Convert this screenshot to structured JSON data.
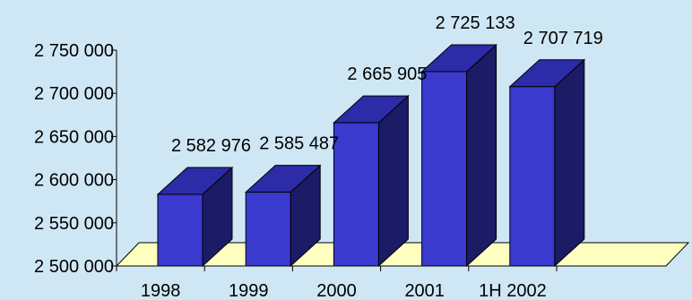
{
  "chart_data": {
    "type": "bar",
    "style": "3d",
    "categories": [
      "1998",
      "1999",
      "2000",
      "2001",
      "1H 2002"
    ],
    "values": [
      2582976,
      2585487,
      2665905,
      2725133,
      2707719
    ],
    "data_labels": [
      "2 582 976",
      "2 585 487",
      "2 665 905",
      "2 725 133",
      "2 707 719"
    ],
    "title": "",
    "xlabel": "",
    "ylabel": "",
    "ylim": [
      2500000,
      2750000
    ],
    "yticks": [
      2500000,
      2550000,
      2600000,
      2650000,
      2700000,
      2750000
    ],
    "ytick_labels": [
      "2 500 000",
      "2 550 000",
      "2 600 000",
      "2 650 000",
      "2 700 000",
      "2 750 000"
    ],
    "grid": false,
    "legend": "none",
    "colors": {
      "background": "#cfe7f5",
      "floor": "#ffffc0",
      "bar_front": "#3a3acf",
      "bar_side": "#1b1b66",
      "bar_top": "#2c2ca8",
      "axis": "#000000"
    }
  }
}
